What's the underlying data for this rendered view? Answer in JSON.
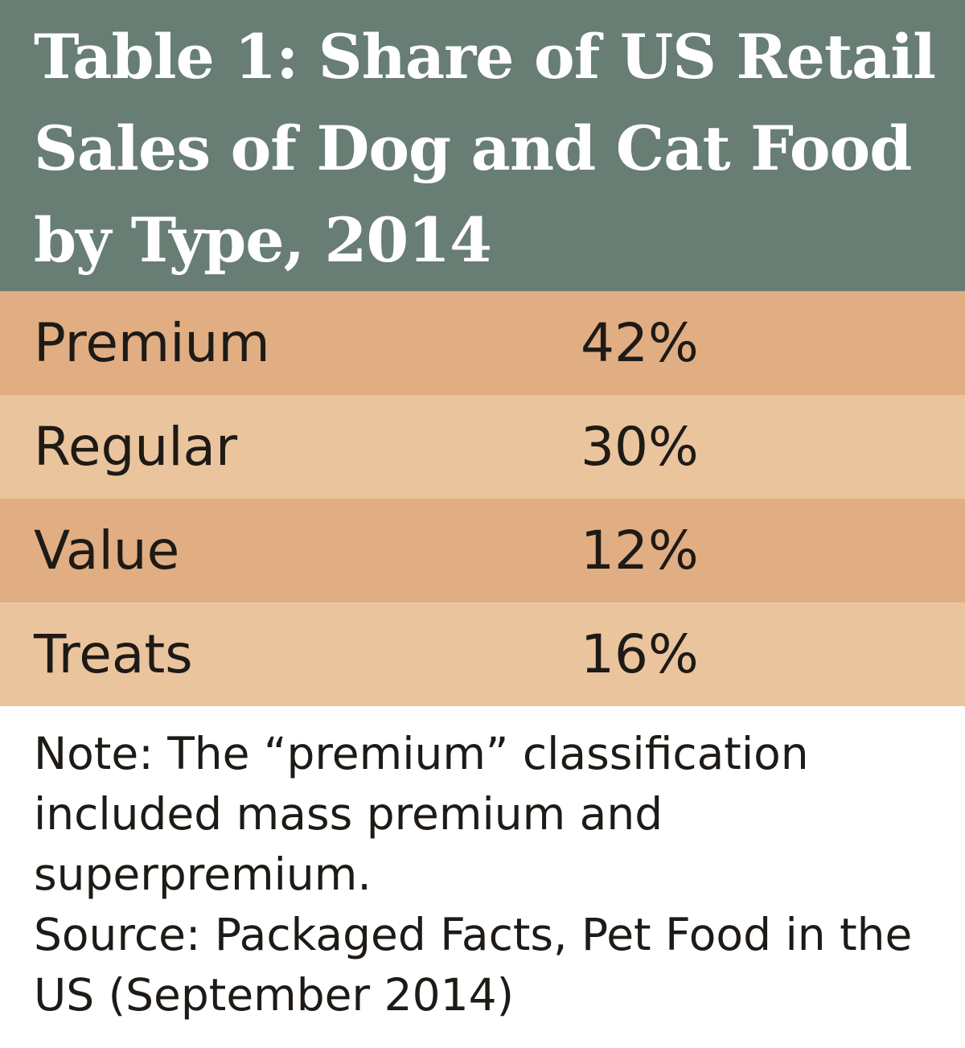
{
  "chart_data": {
    "type": "table",
    "title": "Table 1: Share of US Retail Sales of Dog and Cat Food by Type, 2014",
    "rows": [
      {
        "label": "Premium",
        "value": "42%"
      },
      {
        "label": "Regular",
        "value": "30%"
      },
      {
        "label": "Value",
        "value": "12%"
      },
      {
        "label": "Treats",
        "value": "16%"
      }
    ],
    "note": "Note: The “premium” classification included mass premium and superpremium.",
    "source": "Source: Packaged Facts, Pet Food in the US (September 2014)"
  },
  "colors": {
    "header": "#687d73",
    "row_dark": "#e1ad82",
    "row_light": "#eac49d"
  }
}
